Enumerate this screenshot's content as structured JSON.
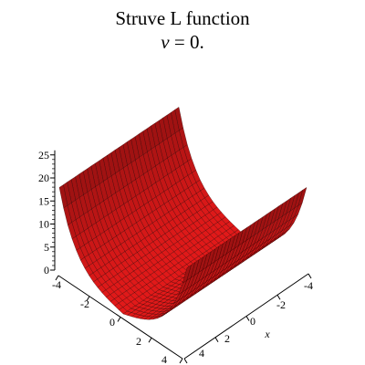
{
  "chart_data": {
    "type": "surface3d",
    "title": "Struve L  function",
    "subtitle_var": "v",
    "subtitle_rest": " = 0.",
    "xlabel": "x",
    "ylabel": "",
    "zlabel": "",
    "xlim": [
      -4,
      4
    ],
    "ylim": [
      -4,
      4
    ],
    "zlim": [
      0,
      25
    ],
    "x_ticks": [
      "-4",
      "-2",
      "0",
      "2",
      "4"
    ],
    "y_ticks": [
      "-4",
      "-2",
      "0",
      "2",
      "4"
    ],
    "z_ticks": [
      "0",
      "5",
      "10",
      "15",
      "20",
      "25"
    ],
    "grid_lines": 30,
    "surface_color": "#e61a1a",
    "mesh_color": "#2a0000"
  }
}
